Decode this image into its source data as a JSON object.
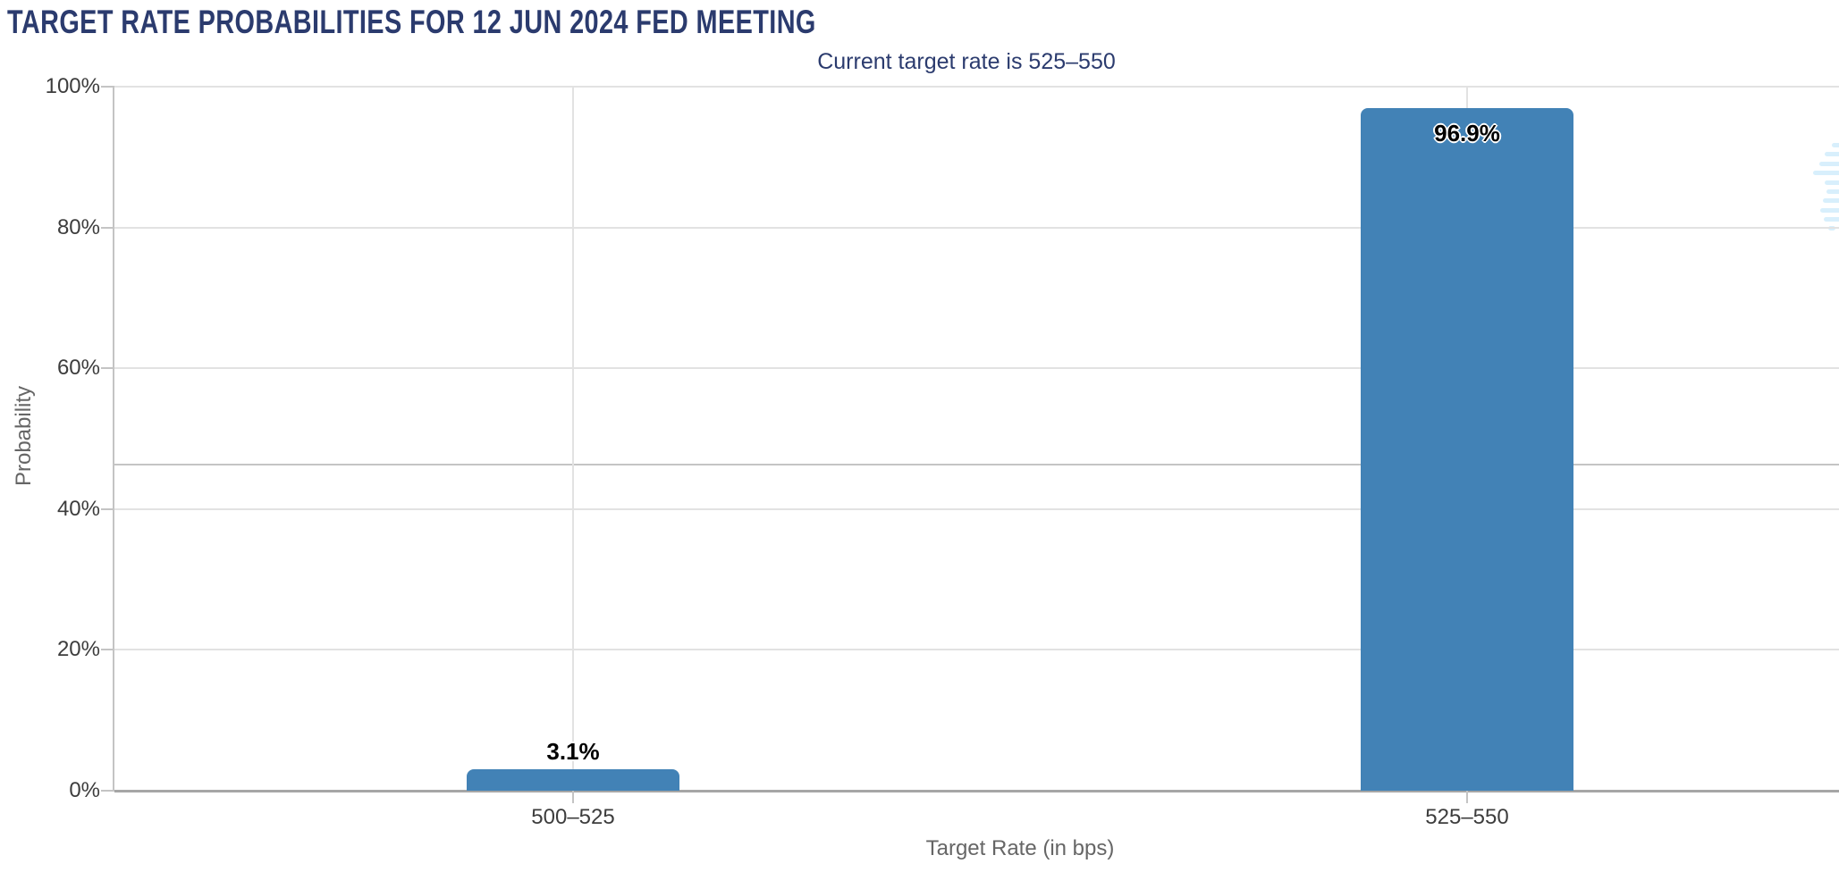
{
  "chart_data": {
    "type": "bar",
    "title": "TARGET RATE PROBABILITIES FOR 12 JUN 2024 FED MEETING",
    "subtitle": "Current target rate is 525–550",
    "categories": [
      "500–525",
      "525–550"
    ],
    "values": [
      3.1,
      96.9
    ],
    "data_labels": [
      "3.1%",
      "96.9%"
    ],
    "xlabel": "Target Rate (in bps)",
    "ylabel": "Probability",
    "ylim": [
      0,
      100
    ],
    "ytick_values": [
      0,
      20,
      40,
      60,
      80,
      100
    ],
    "ytick_labels": [
      "0%",
      "20%",
      "40%",
      "60%",
      "80%",
      "100%"
    ],
    "unlabeled_gridline_value": 46.3,
    "grid": true,
    "legend_position": "none",
    "bar_color": "#4282B6"
  },
  "colors": {
    "title": "#2B3B6E",
    "axis_text": "#3D3D3D",
    "axis_title_text": "#666666",
    "bar": "#4282B6",
    "gridline": "#E2E2E2",
    "axis_line": "#C4C4C4",
    "baseline": "#A6A6A6",
    "watermark": "#D8EFFC",
    "background": "#FFFFFF"
  },
  "watermark": {
    "icon": "cme-globe-logo"
  }
}
